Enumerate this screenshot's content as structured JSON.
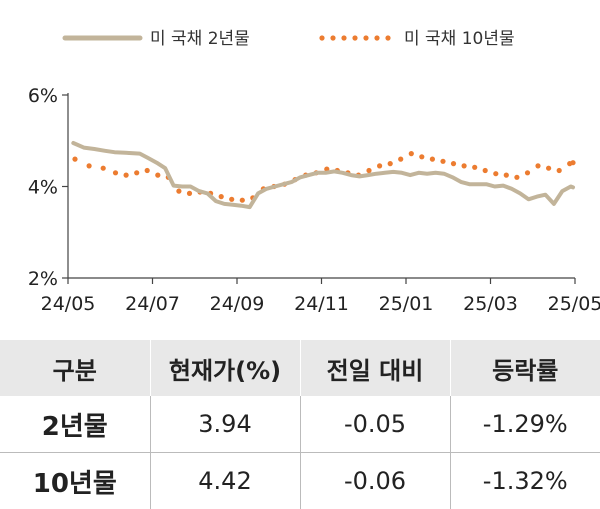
{
  "chart_data": {
    "type": "line",
    "title": "",
    "xlabel": "",
    "ylabel": "",
    "ylim": [
      2,
      6
    ],
    "y_ticks": [
      "2%",
      "4%",
      "6%"
    ],
    "x_ticks": [
      "24/05",
      "24/07",
      "24/09",
      "24/11",
      "25/01",
      "25/03",
      "25/05"
    ],
    "grid": false,
    "legend_position": "top",
    "series": [
      {
        "name": "미 국채 2년물",
        "style": "solid",
        "color": "#c2b49a",
        "x": [
          "24/05",
          "24/05",
          "24/05",
          "24/05",
          "24/06",
          "24/06",
          "24/06",
          "24/06",
          "24/06",
          "24/07",
          "24/07",
          "24/07",
          "24/07",
          "24/07",
          "24/08",
          "24/08",
          "24/08",
          "24/08",
          "24/08",
          "24/09",
          "24/09",
          "24/09",
          "24/09",
          "24/09",
          "24/10",
          "24/10",
          "24/10",
          "24/10",
          "24/10",
          "24/11",
          "24/11",
          "24/11",
          "24/11",
          "24/11",
          "24/12",
          "24/12",
          "24/12",
          "24/12",
          "24/12",
          "25/01",
          "25/01",
          "25/01",
          "25/01",
          "25/01",
          "25/02",
          "25/02",
          "25/02",
          "25/02",
          "25/02",
          "25/03",
          "25/03",
          "25/03",
          "25/03",
          "25/03",
          "25/04",
          "25/04",
          "25/04",
          "25/04",
          "25/04",
          "25/05"
        ],
        "y": [
          4.95,
          4.85,
          4.82,
          4.78,
          4.75,
          4.74,
          4.73,
          4.72,
          4.62,
          4.52,
          4.4,
          4.02,
          4.0,
          4.0,
          3.9,
          3.85,
          3.68,
          3.62,
          3.6,
          3.58,
          3.55,
          3.85,
          3.95,
          4.0,
          4.05,
          4.1,
          4.2,
          4.25,
          4.3,
          4.3,
          4.33,
          4.3,
          4.25,
          4.22,
          4.25,
          4.28,
          4.3,
          4.32,
          4.3,
          4.25,
          4.3,
          4.28,
          4.3,
          4.28,
          4.2,
          4.1,
          4.05,
          4.05,
          4.05,
          4.0,
          4.02,
          3.95,
          3.85,
          3.72,
          3.78,
          3.82,
          3.62,
          3.9,
          4.0,
          3.98
        ]
      },
      {
        "name": "미 국채 10년물",
        "style": "dotted",
        "color": "#ec7c30",
        "x": [
          "24/05",
          "24/05",
          "24/05",
          "24/06",
          "24/06",
          "24/06",
          "24/06",
          "24/07",
          "24/07",
          "24/07",
          "24/07",
          "24/08",
          "24/08",
          "24/08",
          "24/08",
          "24/09",
          "24/09",
          "24/09",
          "24/09",
          "24/10",
          "24/10",
          "24/10",
          "24/10",
          "24/11",
          "24/11",
          "24/11",
          "24/11",
          "24/12",
          "24/12",
          "24/12",
          "24/12",
          "25/01",
          "25/01",
          "25/01",
          "25/01",
          "25/02",
          "25/02",
          "25/02",
          "25/02",
          "25/03",
          "25/03",
          "25/03",
          "25/03",
          "25/04",
          "25/04",
          "25/04",
          "25/04",
          "25/05"
        ],
        "y": [
          4.6,
          4.45,
          4.4,
          4.3,
          4.25,
          4.3,
          4.35,
          4.25,
          4.2,
          3.9,
          3.85,
          3.88,
          3.85,
          3.78,
          3.72,
          3.7,
          3.75,
          3.95,
          4.0,
          4.05,
          4.15,
          4.25,
          4.3,
          4.38,
          4.35,
          4.3,
          4.25,
          4.35,
          4.45,
          4.5,
          4.6,
          4.72,
          4.65,
          4.6,
          4.55,
          4.5,
          4.45,
          4.42,
          4.35,
          4.28,
          4.25,
          4.2,
          4.3,
          4.45,
          4.4,
          4.35,
          4.5,
          4.52
        ]
      }
    ]
  },
  "table": {
    "headers": [
      "구분",
      "현재가(%)",
      "전일 대비",
      "등락률"
    ],
    "rows": [
      [
        "2년물",
        "3.94",
        "-0.05",
        "-1.29%"
      ],
      [
        "10년물",
        "4.42",
        "-0.06",
        "-1.32%"
      ]
    ]
  }
}
